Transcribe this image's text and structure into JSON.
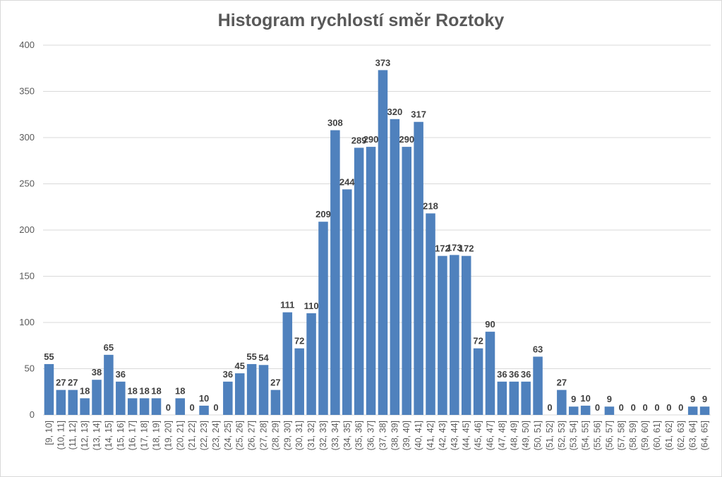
{
  "chart_data": {
    "type": "bar",
    "title": "Histogram rychlostí směr Roztoky",
    "xlabel": "",
    "ylabel": "",
    "ylim": [
      0,
      400
    ],
    "yticks": [
      0,
      50,
      100,
      150,
      200,
      250,
      300,
      350,
      400
    ],
    "grid": true,
    "legend": "none",
    "bar_color": "#4f81bd",
    "categories": [
      "[9, 10]",
      "(10, 11]",
      "(11, 12]",
      "(12, 13]",
      "(13, 14]",
      "(14, 15]",
      "(15, 16]",
      "(16, 17]",
      "(17, 18]",
      "(18, 19]",
      "(19, 20]",
      "(20, 21]",
      "(21, 22]",
      "(22, 23]",
      "(23, 24]",
      "(24, 25]",
      "(25, 26]",
      "(26, 27]",
      "(27, 28]",
      "(28, 29]",
      "(29, 30]",
      "(30, 31]",
      "(31, 32]",
      "(32, 33]",
      "(33, 34]",
      "(34, 35]",
      "(35, 36]",
      "(36, 37]",
      "(37, 38]",
      "(38, 39]",
      "(39, 40]",
      "(40, 41]",
      "(41, 42]",
      "(42, 43]",
      "(43, 44]",
      "(44, 45]",
      "(45, 46]",
      "(46, 47]",
      "(47, 48]",
      "(48, 49]",
      "(49, 50]",
      "(50, 51]",
      "(51, 52]",
      "(52, 53]",
      "(53, 54]",
      "(54, 55]",
      "(55, 56]",
      "(56, 57]",
      "(57, 58]",
      "(58, 59]",
      "(59, 60]",
      "(60, 61]",
      "(61, 62]",
      "(62, 63]",
      "(63, 64]",
      "(64, 65]"
    ],
    "values": [
      55,
      27,
      27,
      18,
      38,
      65,
      36,
      18,
      18,
      18,
      0,
      18,
      0,
      10,
      0,
      36,
      45,
      55,
      54,
      27,
      111,
      72,
      110,
      209,
      308,
      244,
      289,
      290,
      373,
      320,
      290,
      317,
      218,
      172,
      173,
      172,
      72,
      90,
      36,
      36,
      36,
      63,
      0,
      27,
      9,
      10,
      0,
      9,
      0,
      0,
      0,
      0,
      0,
      0,
      9,
      9
    ]
  }
}
